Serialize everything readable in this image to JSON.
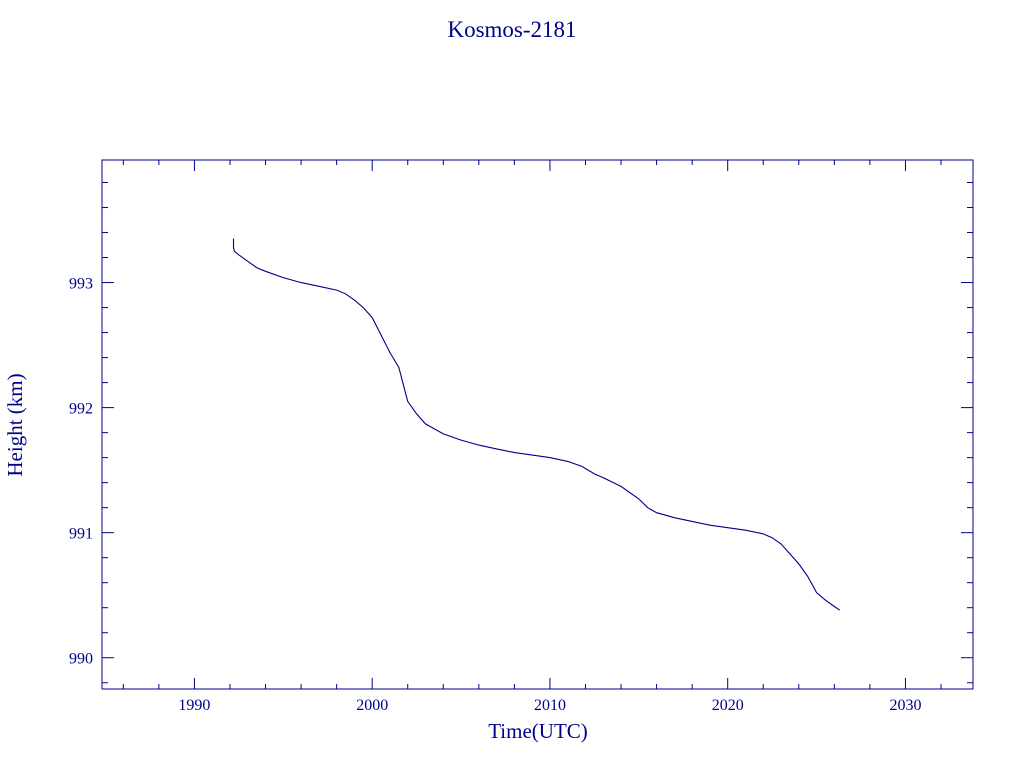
{
  "chart_data": {
    "type": "line",
    "title": "Kosmos-2181",
    "xlabel": "Time(UTC)",
    "ylabel": "Height (km)",
    "xlim": [
      1984.8,
      2033.8
    ],
    "ylim": [
      989.75,
      993.98
    ],
    "x_ticks": [
      1990,
      2000,
      2010,
      2020,
      2030
    ],
    "y_ticks": [
      990,
      991,
      992,
      993
    ],
    "x_minor_step": 2,
    "y_minor_step": 0.2,
    "grid": false,
    "color": "#00008b",
    "series": [
      {
        "x": [
          1992.2,
          1992.25,
          1992.5,
          1993.0,
          1993.5,
          1994.0,
          1995.0,
          1996.0,
          1997.0,
          1998.0,
          1998.5,
          1999.0,
          1999.5,
          2000.0,
          2000.5,
          2001.0,
          2001.5,
          2002.0,
          2002.5,
          2003.0,
          2003.5,
          2004.0,
          2005.0,
          2006.0,
          2007.0,
          2008.0,
          2009.0,
          2010.0,
          2011.0,
          2011.8,
          2012.5,
          2013.0,
          2014.0,
          2015.0,
          2015.5,
          2016.0,
          2017.0,
          2018.0,
          2019.0,
          2020.0,
          2021.0,
          2022.0,
          2022.5,
          2023.0,
          2023.5,
          2024.0,
          2024.5,
          2025.0,
          2025.5,
          2026.0,
          2026.3
        ],
        "y": [
          993.28,
          993.25,
          993.22,
          993.17,
          993.12,
          993.09,
          993.04,
          993.0,
          992.97,
          992.94,
          992.91,
          992.86,
          992.8,
          992.72,
          992.58,
          992.44,
          992.32,
          992.05,
          991.95,
          991.87,
          991.83,
          991.79,
          991.74,
          991.7,
          991.67,
          991.64,
          991.62,
          991.6,
          991.57,
          991.53,
          991.47,
          991.44,
          991.37,
          991.27,
          991.2,
          991.16,
          991.12,
          991.09,
          991.06,
          991.04,
          991.02,
          990.99,
          990.96,
          990.91,
          990.83,
          990.75,
          990.65,
          990.52,
          990.46,
          990.41,
          990.38
        ]
      }
    ]
  }
}
